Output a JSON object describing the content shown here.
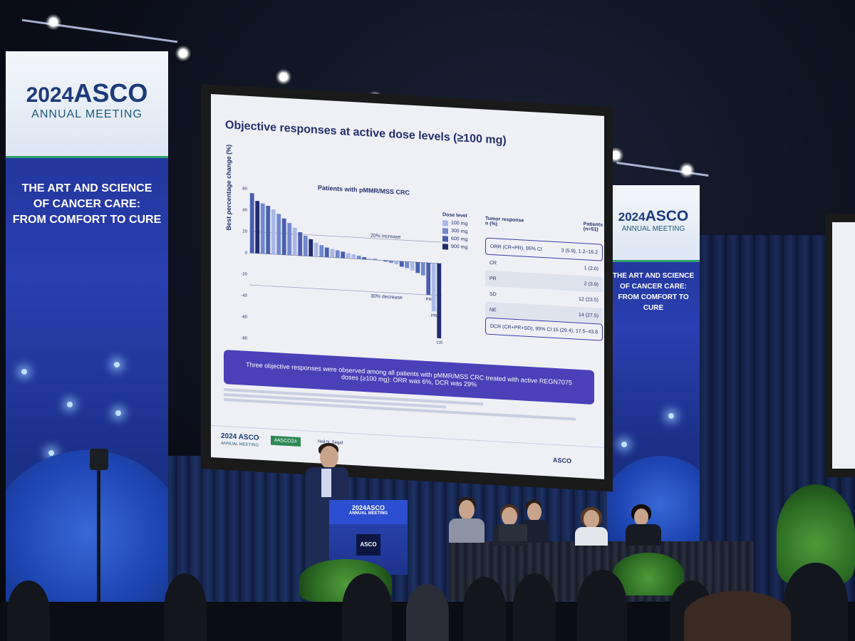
{
  "banner_left": {
    "year": "2024",
    "brand": "ASCO",
    "subtitle": "ANNUAL MEETING",
    "tagline_1": "THE ART AND SCIENCE",
    "tagline_2": "OF CANCER CARE:",
    "tagline_3": "FROM COMFORT TO CURE"
  },
  "banner_right": {
    "year": "2024",
    "brand": "ASCO",
    "subtitle": "ANNUAL MEETING",
    "tagline_1": "THE ART AND SCIENCE",
    "tagline_2": "OF CANCER CARE:",
    "tagline_3": "FROM COMFORT TO CURE"
  },
  "slide": {
    "title": "Objective responses at active dose levels (≥100 mg)",
    "chart_title": "Patients with pMMR/MSS CRC",
    "ylabel": "Best percentage change (%)",
    "line_20": "20% increase",
    "line_30": "30% decrease",
    "legend_title": "Dose level",
    "legend": [
      {
        "label": "100 mg",
        "color": "#aab8e8"
      },
      {
        "label": "300 mg",
        "color": "#7288cf"
      },
      {
        "label": "600 mg",
        "color": "#4a5fb0"
      },
      {
        "label": "900 mg",
        "color": "#202c70"
      }
    ],
    "bar_labels": {
      "pr1": "PR",
      "pr2": "PR",
      "cr": "CR"
    },
    "table_header_left": "Tumor response",
    "table_header_left2": "n (%)",
    "table_header_right": "Patients",
    "table_header_right2": "(n=51)",
    "rows": [
      {
        "label": "ORR (CR+PR), 95% CI",
        "value": "3 (5.9), 1.2–16.2"
      },
      {
        "label": "CR",
        "value": "1 (2.0)"
      },
      {
        "label": "PR",
        "value": "2 (3.9)"
      },
      {
        "label": "SD",
        "value": "12 (23.5)"
      },
      {
        "label": "NE",
        "value": "14 (27.5)"
      },
      {
        "label": "DCR (CR+PR+SD), 95% CI",
        "value": "15 (29.4), 17.5–43.8"
      }
    ],
    "summary": "Three objective responses were observed among all patients with pMMR/MSS CRC treated with active REGN7075 doses (≥100 mg): ORR was 6%, DCR was 29%",
    "footer_year": "2024",
    "footer_brand": "ASCO",
    "footer_sub": "ANNUAL MEETING",
    "hashtag": "#ASCO24",
    "presenter": "Neil N. Segal",
    "footer_asco": "ASCO"
  },
  "chart_data": {
    "type": "bar",
    "title": "Patients with pMMR/MSS CRC",
    "ylabel": "Best percentage change (%)",
    "ylim": [
      -80,
      60
    ],
    "yticks": [
      60,
      40,
      20,
      0,
      -20,
      -40,
      -60,
      -80
    ],
    "reference_lines": [
      20,
      -30
    ],
    "values": [
      56,
      49,
      47,
      45,
      42,
      38,
      34,
      30,
      26,
      22,
      19,
      16,
      13,
      11,
      9,
      8,
      7,
      6,
      5,
      4,
      3,
      2,
      1,
      1,
      0,
      -1,
      -2,
      -3,
      -5,
      -6,
      -8,
      -10,
      -12,
      -30,
      -45,
      -70
    ],
    "colors": [
      "#4a5fb0",
      "#202c70",
      "#7288cf",
      "#4a5fb0",
      "#aab8e8",
      "#7288cf",
      "#4a5fb0",
      "#7288cf",
      "#aab8e8",
      "#4a5fb0",
      "#7288cf",
      "#202c70",
      "#aab8e8",
      "#7288cf",
      "#4a5fb0",
      "#aab8e8",
      "#7288cf",
      "#4a5fb0",
      "#aab8e8",
      "#aab8e8",
      "#7288cf",
      "#4a5fb0",
      "#aab8e8",
      "#7288cf",
      "#aab8e8",
      "#4a5fb0",
      "#7288cf",
      "#aab8e8",
      "#4a5fb0",
      "#7288cf",
      "#aab8e8",
      "#4a5fb0",
      "#7288cf",
      "#4a5fb0",
      "#aab8e8",
      "#202c70"
    ]
  },
  "podium": {
    "brand": "2024ASCO",
    "sub": "ANNUAL MEETING",
    "badge": "ASCO"
  }
}
